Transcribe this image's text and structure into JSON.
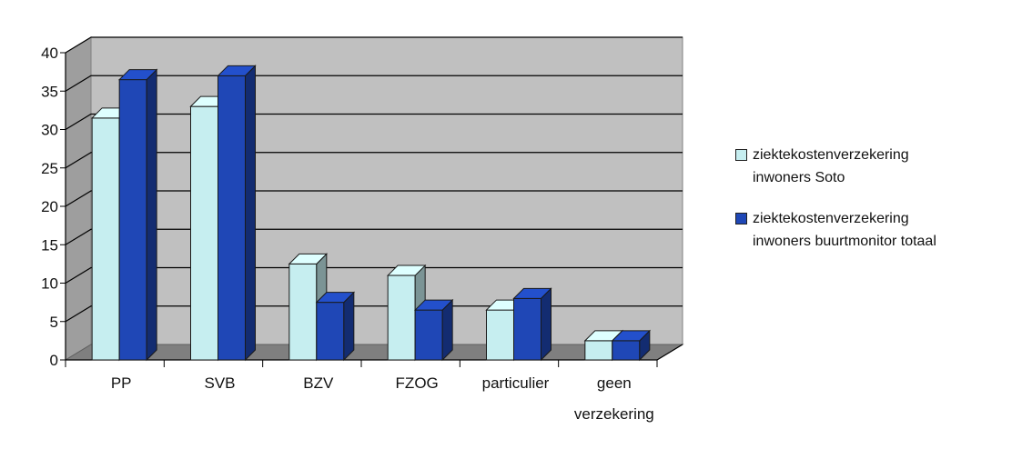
{
  "chart_data": {
    "type": "bar",
    "categories": [
      "PP",
      "SVB",
      "BZV",
      "FZOG",
      "particulier",
      "geen\nverzekering"
    ],
    "series": [
      {
        "name": "ziektekostenverzekering\ninwoners Soto",
        "values": [
          31.5,
          33,
          12.5,
          11,
          6.5,
          2.5
        ],
        "color": "#c6eef0"
      },
      {
        "name": "ziektekostenverzekering\ninwoners buurtmonitor totaal",
        "values": [
          36.5,
          37,
          7.5,
          6.5,
          8,
          2.5
        ],
        "color": "#1f47b6"
      }
    ],
    "yticks": [
      0,
      5,
      10,
      15,
      20,
      25,
      30,
      35,
      40
    ],
    "ylim": [
      0,
      40
    ],
    "grid": true,
    "legend_position": "right",
    "background_color": "#c0c0c0",
    "title": "",
    "xlabel": "",
    "ylabel": ""
  }
}
